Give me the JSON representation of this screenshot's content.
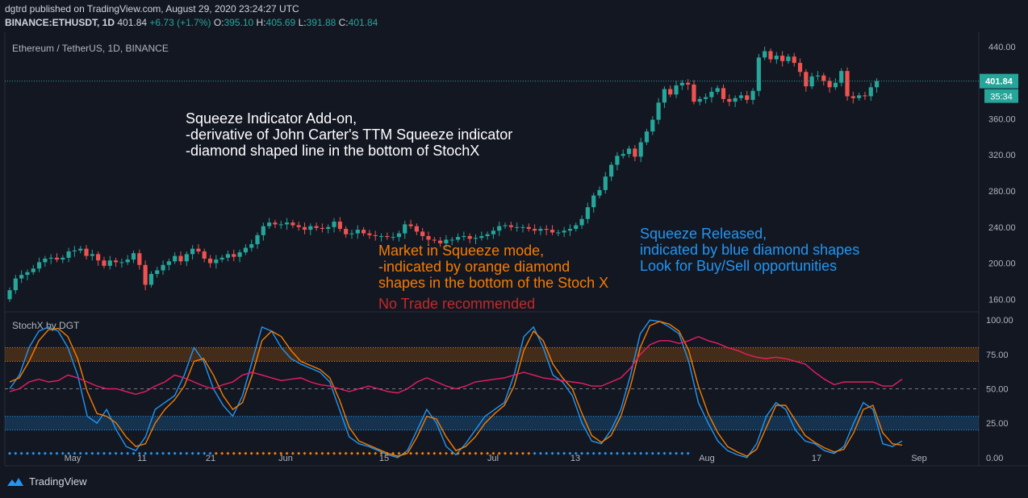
{
  "header": {
    "published": "dgtrd published on TradingView.com, August 29, 2020 23:24:27 UTC",
    "symbol": "BINANCE:ETHUSDT, 1D",
    "last": "401.84",
    "change": "+6.73 (+1.7%)",
    "o_label": "O:",
    "o": "395.10",
    "h_label": "H:",
    "h": "405.69",
    "l_label": "L:",
    "l": "391.88",
    "c_label": "C:",
    "c": "401.84"
  },
  "main_pane": {
    "title": "Ethereum / TetherUS, 1D, BINANCE"
  },
  "sub_pane": {
    "title": "StochX by DGT"
  },
  "price_badge": "401.84",
  "timer_badge": "35:34",
  "annotations": {
    "white": [
      "Squeeze Indicator Add-on,",
      "-derivative of John Carter's TTM Squeeze indicator",
      "-diamond shaped line in the bottom of StochX"
    ],
    "orange": [
      "Market in Squeeze mode,",
      "-indicated by orange diamond",
      "shapes in the bottom of the Stoch X"
    ],
    "red": "No Trade recommended",
    "blue": [
      "Squeeze Released,",
      "indicated by blue diamond shapes",
      "Look for Buy/Sell opportunities"
    ]
  },
  "footer": {
    "brand": "TradingView"
  },
  "colors": {
    "up": "#26a69a",
    "down": "#ef5350",
    "k_line": "#2196f3",
    "d_line": "#f57c00",
    "third_line": "#e91e63",
    "orange_text": "#f57c00",
    "red_text": "#c62828",
    "blue_text": "#2196f3"
  },
  "chart_data": [
    {
      "type": "candlestick",
      "title": "Ethereum / TetherUS, 1D, BINANCE",
      "x_tick_labels": [
        "May",
        "11",
        "21",
        "Jun",
        "15",
        "Jul",
        "13",
        "Aug",
        "17",
        "Sep"
      ],
      "y_ticks": [
        160,
        200,
        240,
        280,
        320,
        360,
        400,
        440
      ],
      "y_tick_labels": [
        "160.00",
        "200.00",
        "240.00",
        "280.00",
        "320.00",
        "360.00",
        "400.00",
        "440.00"
      ],
      "ylim": [
        146,
        456
      ],
      "last_price": 401.84,
      "close": [
        170,
        183,
        187,
        190,
        194,
        201,
        205,
        206,
        204,
        206,
        213,
        214,
        216,
        208,
        210,
        203,
        197,
        203,
        201,
        201,
        204,
        211,
        198,
        176,
        188,
        192,
        198,
        202,
        208,
        202,
        210,
        216,
        213,
        205,
        200,
        204,
        206,
        210,
        207,
        212,
        217,
        221,
        231,
        241,
        245,
        243,
        243,
        245,
        242,
        240,
        237,
        241,
        239,
        238,
        240,
        246,
        238,
        232,
        233,
        237,
        233,
        231,
        230,
        230,
        229,
        229,
        233,
        243,
        241,
        235,
        230,
        226,
        225,
        222,
        226,
        226,
        229,
        230,
        227,
        228,
        230,
        232,
        236,
        241,
        242,
        240,
        240,
        240,
        238,
        236,
        238,
        237,
        234,
        234,
        236,
        238,
        242,
        249,
        262,
        275,
        281,
        296,
        309,
        319,
        321,
        327,
        318,
        334,
        346,
        359,
        378,
        393,
        387,
        397,
        400,
        398,
        379,
        382,
        384,
        390,
        394,
        382,
        379,
        383,
        386,
        381,
        391,
        428,
        435,
        426,
        430,
        424,
        429,
        422,
        412,
        396,
        407,
        408,
        402,
        395,
        400,
        413,
        385,
        383,
        386,
        385,
        395,
        402
      ],
      "open": [
        160,
        170,
        183,
        187,
        190,
        194,
        201,
        205,
        206,
        204,
        206,
        213,
        214,
        216,
        208,
        210,
        203,
        197,
        203,
        201,
        201,
        204,
        211,
        198,
        176,
        188,
        192,
        198,
        202,
        208,
        202,
        210,
        216,
        213,
        205,
        200,
        204,
        206,
        210,
        207,
        212,
        217,
        221,
        231,
        241,
        245,
        243,
        243,
        245,
        242,
        240,
        237,
        241,
        239,
        238,
        240,
        246,
        238,
        232,
        233,
        237,
        233,
        231,
        230,
        230,
        229,
        229,
        233,
        243,
        241,
        235,
        230,
        226,
        225,
        222,
        226,
        226,
        229,
        230,
        227,
        228,
        230,
        232,
        236,
        241,
        242,
        240,
        240,
        240,
        238,
        236,
        238,
        237,
        234,
        234,
        236,
        238,
        242,
        249,
        262,
        275,
        281,
        296,
        309,
        319,
        321,
        327,
        318,
        334,
        346,
        359,
        378,
        393,
        387,
        397,
        400,
        398,
        379,
        382,
        384,
        390,
        394,
        382,
        379,
        383,
        386,
        381,
        391,
        428,
        435,
        426,
        430,
        424,
        429,
        422,
        412,
        396,
        407,
        408,
        402,
        395,
        400,
        413,
        385,
        383,
        386,
        385,
        395
      ]
    },
    {
      "type": "line",
      "title": "StochX by DGT",
      "y_ticks": [
        0,
        25,
        50,
        75,
        100
      ],
      "y_tick_labels": [
        "0.00",
        "25.00",
        "50.00",
        "75.00",
        "100.00"
      ],
      "ylim": [
        -6,
        106
      ],
      "overbought_band": [
        70,
        80
      ],
      "oversold_band": [
        20,
        30
      ],
      "midline": 50,
      "series": [
        {
          "values": [
            50,
            60,
            80,
            92,
            95,
            92,
            80,
            60,
            30,
            25,
            35,
            20,
            8,
            5,
            15,
            35,
            40,
            45,
            60,
            80,
            70,
            50,
            38,
            30,
            45,
            70,
            95,
            92,
            80,
            72,
            68,
            65,
            62,
            55,
            35,
            15,
            10,
            8,
            5,
            2,
            0,
            5,
            20,
            35,
            25,
            8,
            2,
            10,
            20,
            30,
            35,
            40,
            60,
            88,
            95,
            80,
            60,
            55,
            45,
            25,
            12,
            10,
            20,
            35,
            60,
            90,
            100,
            99,
            95,
            90,
            70,
            40,
            25,
            12,
            5,
            2,
            0,
            10,
            30,
            40,
            35,
            20,
            12,
            10,
            5,
            3,
            8,
            25,
            40,
            35,
            10,
            8,
            12
          ]
        },
        {
          "values": [
            55,
            58,
            70,
            85,
            93,
            94,
            88,
            72,
            48,
            32,
            30,
            25,
            15,
            8,
            10,
            25,
            35,
            42,
            52,
            70,
            72,
            60,
            45,
            35,
            40,
            60,
            85,
            92,
            88,
            78,
            70,
            67,
            64,
            58,
            42,
            22,
            12,
            9,
            6,
            3,
            1,
            3,
            15,
            30,
            28,
            15,
            5,
            8,
            15,
            25,
            32,
            38,
            52,
            78,
            92,
            85,
            68,
            58,
            50,
            32,
            16,
            11,
            16,
            30,
            52,
            80,
            96,
            99,
            97,
            92,
            78,
            52,
            32,
            18,
            8,
            4,
            1,
            6,
            22,
            38,
            38,
            27,
            16,
            11,
            7,
            4,
            6,
            18,
            35,
            38,
            18,
            10,
            9
          ]
        },
        {
          "values": [
            48,
            50,
            55,
            57,
            55,
            56,
            60,
            58,
            55,
            52,
            50,
            50,
            48,
            46,
            48,
            52,
            55,
            60,
            58,
            55,
            52,
            50,
            53,
            55,
            60,
            62,
            60,
            58,
            56,
            57,
            58,
            55,
            53,
            52,
            50,
            48,
            50,
            52,
            50,
            48,
            47,
            50,
            55,
            58,
            55,
            52,
            50,
            52,
            55,
            56,
            57,
            58,
            60,
            62,
            60,
            58,
            57,
            56,
            55,
            54,
            52,
            52,
            55,
            58,
            65,
            75,
            82,
            85,
            85,
            83,
            85,
            88,
            85,
            83,
            80,
            78,
            75,
            73,
            72,
            73,
            72,
            70,
            68,
            62,
            57,
            53,
            55,
            55,
            55,
            55,
            52,
            52,
            57
          ]
        }
      ],
      "diamonds": {
        "blue_count": 35,
        "orange_count": 54,
        "blue_count_2": 27,
        "level": 3
      }
    }
  ]
}
